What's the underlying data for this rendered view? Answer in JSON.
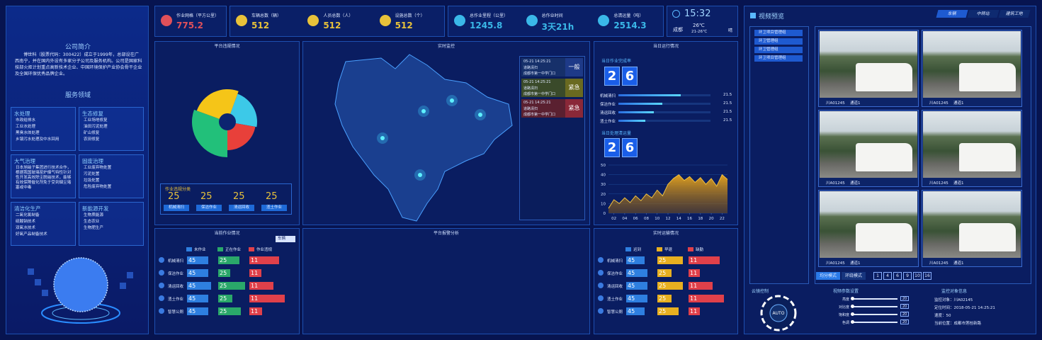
{
  "company": {
    "title": "公司简介",
    "text": "博世科（股票代码：300422）成立于1999年，总部设在广西南宁，并在国内外设有多家分子公司及服务机构。公司是国家科技部火炬计划重点高新技术企业、中国环境保护产业协会骨干企业及全国环保优秀品牌企业。"
  },
  "services": {
    "title": "服务领域",
    "groups": [
      {
        "name": "水处理",
        "items": [
          "市政给排水",
          "工业水处理",
          "黑臭水体处理",
          "乡镇污水处理及中水回用"
        ]
      },
      {
        "name": "生态修复",
        "items": [
          "工业场地修复",
          "油田污泥处理",
          "矿山修复",
          "农田修复"
        ]
      },
      {
        "name": "大气治理",
        "items": [
          "日本旭硝子集团进行技术合作，根据我国玻璃窑炉烟气特性针对性开发高效除尘脱硝技术，能够有效保障催化剂免于受到烟尘堵塞或中毒"
        ]
      },
      {
        "name": "固废治理",
        "items": [
          "工业废弃物处置",
          "污泥处置",
          "垃圾处置",
          "危险废弃物处置"
        ]
      },
      {
        "name": "清洁化生产",
        "items": [
          "二氧化氯制备",
          "硫酸钠技术",
          "双氧水技术",
          "好氧产品制备技术"
        ]
      },
      {
        "name": "新能源开发",
        "items": [
          "生物质能源",
          "生态农业",
          "生物肥生产"
        ]
      }
    ]
  },
  "stats": [
    {
      "label": "作业网格（平方公里）",
      "value": "775.2"
    },
    {
      "label": "车辆总数（辆）",
      "value": "512"
    },
    {
      "label": "人员总数（人）",
      "value": "512"
    },
    {
      "label": "设施总数（个）",
      "value": "512"
    },
    {
      "label": "总作业里程（公里）",
      "value": "1245.8"
    },
    {
      "label": "总作业时间",
      "value": "3天21h"
    },
    {
      "label": "总清运量（吨）",
      "value": "2514.3"
    }
  ],
  "weather": {
    "time": "15:32",
    "city": "成都",
    "temp": "26℃",
    "range": "21-26℃",
    "condition": "晴"
  },
  "violations": {
    "title": "平台违规情况",
    "box_title": "作业违规分类",
    "items": [
      {
        "value": "25",
        "label": "机械清扫"
      },
      {
        "value": "25",
        "label": "保洁作业"
      },
      {
        "value": "25",
        "label": "清运回收"
      },
      {
        "value": "25",
        "label": "渣土作业"
      }
    ]
  },
  "monitor": {
    "title": "实时监控",
    "alerts": [
      {
        "time": "05-21 14:25:21",
        "type": "道路清扫",
        "place": "成都市第一中学门口",
        "level": "一般"
      },
      {
        "time": "05-21 14:25:21",
        "type": "道路清扫",
        "place": "成都市第一中学门口",
        "level": "紧急"
      },
      {
        "time": "05-21 14:25:21",
        "type": "道路清扫",
        "place": "成都市第一中学门口",
        "level": "紧急"
      }
    ]
  },
  "daily": {
    "title": "当日运行情况",
    "rate_title": "当日作业完成率",
    "rate_digits": [
      "2",
      "6"
    ],
    "rows": [
      {
        "label": "机械清扫",
        "value": "21.5"
      },
      {
        "label": "保洁作业",
        "value": "21.5"
      },
      {
        "label": "清运回收",
        "value": "21.5"
      },
      {
        "label": "渣土作业",
        "value": "21.5"
      }
    ],
    "volume_title": "当日处理清运量",
    "volume_digits": [
      "2",
      "6"
    ]
  },
  "chart_data": {
    "type": "area",
    "color": "#e0a020",
    "x": [
      1,
      2,
      3,
      4,
      5,
      6,
      7,
      8,
      9,
      10,
      11,
      12,
      13,
      14,
      15,
      16,
      17,
      18,
      19,
      20,
      21,
      22,
      23
    ],
    "values": [
      5,
      14,
      10,
      16,
      11,
      18,
      13,
      20,
      16,
      24,
      18,
      30,
      36,
      40,
      34,
      38,
      32,
      37,
      30,
      36,
      28,
      40,
      35
    ],
    "xlim": [
      1,
      23
    ],
    "ylim": [
      0,
      50
    ],
    "xticks": [
      {
        "value": 2,
        "label": "02"
      },
      {
        "value": 4,
        "label": "04"
      },
      {
        "value": 6,
        "label": "06"
      },
      {
        "value": 8,
        "label": "08"
      },
      10,
      12,
      14,
      16,
      18,
      20,
      22
    ],
    "yticks": [
      0,
      10,
      20,
      30,
      40,
      50
    ]
  },
  "work": {
    "title": "当前作业情况",
    "dropdown": "车辆",
    "legend": [
      "未作业",
      "正在作业",
      "作业违规"
    ],
    "rows": [
      {
        "label": "机械清扫",
        "values": [
          "45",
          "25",
          "11"
        ]
      },
      {
        "label": "保洁作业",
        "values": [
          "45",
          "25",
          "11"
        ]
      },
      {
        "label": "清运回收",
        "values": [
          "45",
          "25",
          "11"
        ]
      },
      {
        "label": "渣土作业",
        "values": [
          "45",
          "25",
          "11"
        ]
      },
      {
        "label": "智慧公厕",
        "values": [
          "45",
          "25",
          "11"
        ]
      }
    ]
  },
  "alarm": {
    "title": "平台报警分析"
  },
  "transport": {
    "title": "实时运输情况",
    "legend": [
      "迟到",
      "早退",
      "缺勤"
    ],
    "rows": [
      {
        "label": "机械清扫",
        "values": [
          "45",
          "25",
          "11"
        ]
      },
      {
        "label": "保洁作业",
        "values": [
          "45",
          "25",
          "11"
        ]
      },
      {
        "label": "清运回收",
        "values": [
          "45",
          "25",
          "11"
        ]
      },
      {
        "label": "渣土作业",
        "values": [
          "45",
          "25",
          "11"
        ]
      },
      {
        "label": "智慧公厕",
        "values": [
          "45",
          "25",
          "11"
        ]
      }
    ]
  },
  "video": {
    "title": "视频预览",
    "tabs": [
      "车辆",
      "中转站",
      "建筑工地"
    ],
    "tree": [
      "环卫项目管理组",
      "环卫管理组",
      "环卫管理组",
      "环卫项目管理组"
    ],
    "tiles": [
      {
        "plate": "川A01245",
        "channel": "通道1"
      },
      {
        "plate": "川A01245",
        "channel": "通道1"
      },
      {
        "plate": "川A01245",
        "channel": "通道1"
      },
      {
        "plate": "川A01245",
        "channel": "通道1"
      },
      {
        "plate": "川A01245",
        "channel": "通道1"
      },
      {
        "plate": "川A01245",
        "channel": "通道1"
      }
    ],
    "modes": [
      "均分模式",
      "环绕模式"
    ],
    "splits": [
      "1",
      "4",
      "6",
      "9",
      "10",
      "16"
    ],
    "ptz": {
      "title": "云镜控制",
      "button": "AUTO"
    },
    "params": {
      "title": "视频参数设置",
      "rows": [
        {
          "label": "亮度",
          "value": "20"
        },
        {
          "label": "对比度",
          "value": "20"
        },
        {
          "label": "饱和度",
          "value": "20"
        },
        {
          "label": "色调",
          "value": "20"
        }
      ]
    },
    "info": {
      "title": "监控对象信息",
      "lines": [
        "监控对象：川A02145",
        "定位时间：2018-05-21 14:25:21",
        "速度：50",
        "当前位置：成都市莲桂新路"
      ]
    }
  }
}
